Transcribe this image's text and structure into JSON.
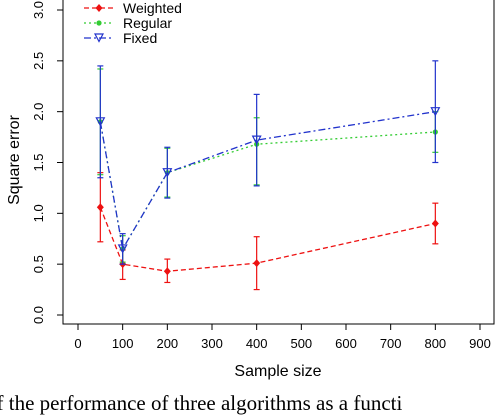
{
  "chart_data": {
    "type": "line",
    "xlabel": "Sample size",
    "ylabel": "Square error",
    "xlim": [
      0,
      900
    ],
    "ylim": [
      0,
      3.0
    ],
    "xticks": [
      0,
      100,
      200,
      300,
      400,
      500,
      600,
      700,
      800,
      900
    ],
    "yticks": [
      "0.0",
      "0.5",
      "1.0",
      "1.5",
      "2.0",
      "2.5",
      "3.0"
    ],
    "yticks_values": [
      0,
      0.5,
      1.0,
      1.5,
      2.0,
      2.5,
      3.0
    ],
    "x": [
      50,
      100,
      200,
      400,
      800
    ],
    "legend_position": "top-left",
    "series": [
      {
        "name": "Weighted",
        "color": "#ee1111",
        "line_style": "dashed",
        "marker": "diamond",
        "values": [
          1.06,
          0.5,
          0.43,
          0.51,
          0.9
        ],
        "error_low": [
          0.72,
          0.35,
          0.32,
          0.25,
          0.7
        ],
        "error_high": [
          1.4,
          0.64,
          0.55,
          0.77,
          1.1
        ]
      },
      {
        "name": "Regular",
        "color": "#33cc33",
        "line_style": "dotted",
        "marker": "circle",
        "values": [
          1.9,
          0.65,
          1.4,
          1.68,
          1.8
        ],
        "error_low": [
          1.38,
          0.52,
          1.16,
          1.28,
          1.6
        ],
        "error_high": [
          2.42,
          0.78,
          1.64,
          1.94,
          2.0
        ]
      },
      {
        "name": "Fixed",
        "color": "#2233cc",
        "line_style": "dashdot",
        "marker": "triangle-down",
        "values": [
          1.9,
          0.65,
          1.4,
          1.72,
          2.0
        ],
        "error_low": [
          1.35,
          0.5,
          1.15,
          1.27,
          1.5
        ],
        "error_high": [
          2.45,
          0.8,
          1.65,
          2.17,
          2.5
        ]
      }
    ]
  },
  "caption_fragment": "of the performance of three algorithms as a functi"
}
